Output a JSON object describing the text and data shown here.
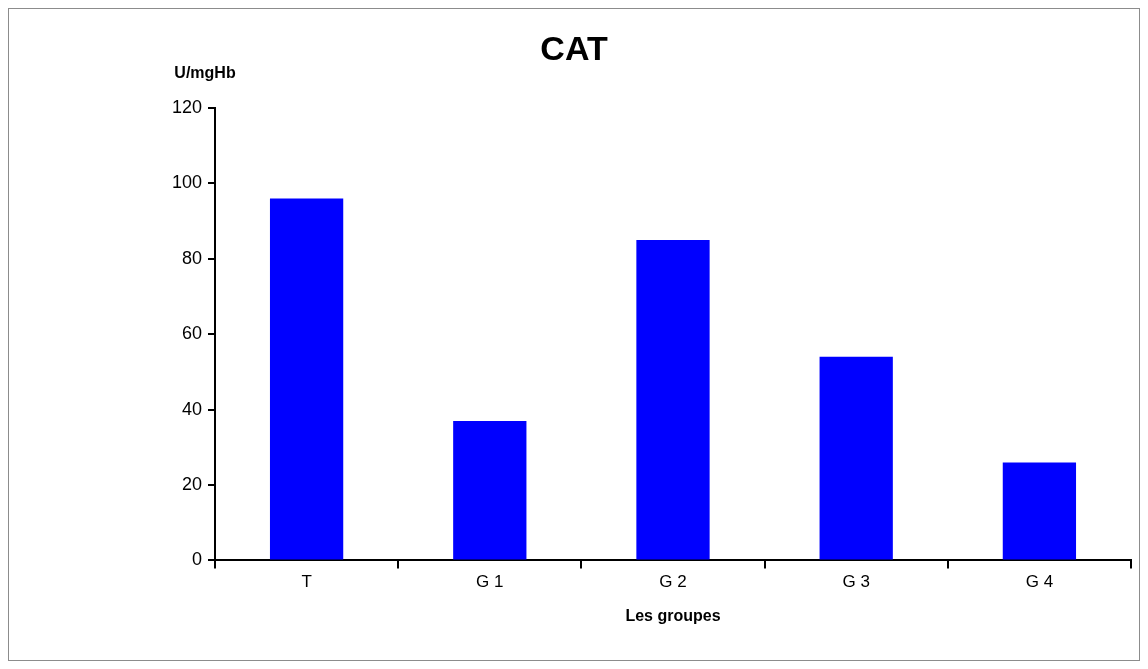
{
  "chart_data": {
    "type": "bar",
    "title": "CAT",
    "ylabel": "U/mgHb",
    "xlabel": "Les groupes",
    "categories": [
      "T",
      "G 1",
      "G 2",
      "G 3",
      "G 4"
    ],
    "values": [
      96,
      37,
      85,
      54,
      26
    ],
    "color": "#0000ff",
    "ylim": [
      0,
      120
    ],
    "yticks": [
      0,
      20,
      40,
      60,
      80,
      100,
      120
    ],
    "grid": false,
    "legend": false
  }
}
